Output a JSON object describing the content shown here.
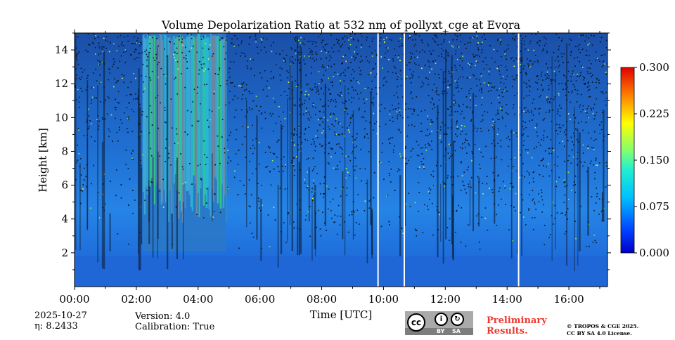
{
  "chart_data": {
    "type": "heatmap",
    "title": "Volume Depolarization Ratio at 532 nm of pollyxt_cge at Evora",
    "xlabel": "Time [UTC]",
    "ylabel": "Height [km]",
    "xlim_hours": [
      0,
      17.25
    ],
    "ylim_km": [
      0,
      15
    ],
    "x_tick_hours": [
      0,
      2,
      4,
      6,
      8,
      10,
      12,
      14,
      16
    ],
    "x_tick_labels": [
      "00:00",
      "02:00",
      "04:00",
      "06:00",
      "08:00",
      "10:00",
      "12:00",
      "14:00",
      "16:00"
    ],
    "y_ticks": [
      2,
      4,
      6,
      8,
      10,
      12,
      14
    ],
    "y_tick_labels": [
      "2",
      "4",
      "6",
      "8",
      "10",
      "12",
      "14"
    ],
    "colorbar": {
      "range": [
        0.0,
        0.3
      ],
      "ticks": [
        0.0,
        0.075,
        0.15,
        0.225,
        0.3
      ],
      "tick_labels": [
        "0.000",
        "0.075",
        "0.150",
        "0.225",
        "0.300"
      ],
      "colormap": "jet"
    },
    "colors": {
      "boundary_layer": "#1f66d6",
      "background": "#1e82e4",
      "noise_dark": "#0a1424",
      "cloud_green": "#3adf6a",
      "cloud_cyan": "#27c8d8"
    },
    "features": [
      {
        "name": "boundary_layer_top_km",
        "value": 1.8
      },
      {
        "name": "high_cloud_columns_hours",
        "range": [
          2.2,
          4.9
        ]
      },
      {
        "name": "low_cloud_base_km",
        "value": 2.1
      },
      {
        "name": "data_gaps_hours",
        "values": [
          9.8,
          10.65,
          14.35
        ]
      }
    ]
  },
  "info": {
    "date": "2025-10-27",
    "eta_label": "η: 8.2433",
    "version": "Version: 4.0",
    "calibration": "Calibration: True",
    "preliminary_line1": "Preliminary",
    "preliminary_line2": "Results.",
    "copyright_line1": "© TROPOS & CGE 2025.",
    "copyright_line2": "CC BY SA 4.0 License.",
    "cc_text": "cc",
    "cc_by": "BY",
    "cc_sa": "SA"
  }
}
